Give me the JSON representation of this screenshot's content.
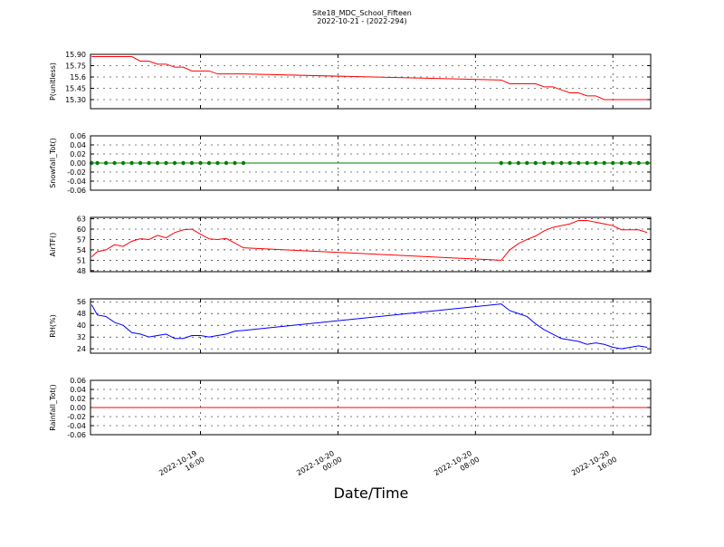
{
  "chart_data": {
    "type": "line",
    "title": "Site18_MDC_School_Fifteen",
    "subtitle": "2022-10-21 - (2022-294)",
    "xlabel": "Date/Time",
    "grid": true,
    "x": [
      "2022-10-19 09:40",
      "2022-10-19 10:00",
      "2022-10-19 10:30",
      "2022-10-19 11:00",
      "2022-10-19 11:30",
      "2022-10-19 12:00",
      "2022-10-19 12:30",
      "2022-10-19 13:00",
      "2022-10-19 13:30",
      "2022-10-19 14:00",
      "2022-10-19 14:30",
      "2022-10-19 15:00",
      "2022-10-19 15:30",
      "2022-10-19 16:00",
      "2022-10-19 16:30",
      "2022-10-19 17:00",
      "2022-10-19 17:30",
      "2022-10-19 18:00",
      "2022-10-19 18:30",
      "2022-10-20 09:30",
      "2022-10-20 10:00",
      "2022-10-20 10:30",
      "2022-10-20 11:00",
      "2022-10-20 11:30",
      "2022-10-20 12:00",
      "2022-10-20 12:30",
      "2022-10-20 13:00",
      "2022-10-20 13:30",
      "2022-10-20 14:00",
      "2022-10-20 14:30",
      "2022-10-20 15:00",
      "2022-10-20 15:30",
      "2022-10-20 16:00",
      "2022-10-20 16:30",
      "2022-10-20 17:00",
      "2022-10-20 17:30",
      "2022-10-20 18:00"
    ],
    "xlim": [
      "2022-10-19 09:36",
      "2022-10-20 18:12"
    ],
    "xticks": [
      {
        "value": "2022-10-19 16:00",
        "label": [
          "2022-10-19",
          "16:00"
        ]
      },
      {
        "value": "2022-10-20 00:00",
        "label": [
          "2022-10-20",
          "00:00"
        ]
      },
      {
        "value": "2022-10-20 08:00",
        "label": [
          "2022-10-20",
          "08:00"
        ]
      },
      {
        "value": "2022-10-20 16:00",
        "label": [
          "2022-10-20",
          "16:00"
        ]
      }
    ],
    "panels": [
      {
        "ylabel": "P(unitless)",
        "ylim": [
          15.18,
          15.9
        ],
        "yticks": [
          {
            "value": 15.3,
            "label": "15.30"
          },
          15.45,
          15.6,
          15.75,
          {
            "value": 15.9,
            "label": "15.90"
          }
        ],
        "series": [
          {
            "color": "#ff0000",
            "marker": false,
            "values": [
              15.87,
              15.87,
              15.87,
              15.87,
              15.87,
              15.87,
              15.81,
              15.81,
              15.77,
              15.77,
              15.73,
              15.73,
              15.68,
              15.68,
              15.68,
              15.64,
              15.64,
              15.64,
              15.64,
              15.56,
              15.51,
              15.51,
              15.51,
              15.51,
              15.47,
              15.47,
              15.43,
              15.39,
              15.39,
              15.35,
              15.35,
              15.3,
              15.3,
              15.3,
              15.3,
              15.3,
              15.3
            ]
          }
        ]
      },
      {
        "ylabel": "Snowfall_Tot()",
        "ylim": [
          -0.06,
          0.06
        ],
        "yticks": [
          -0.06,
          -0.04,
          -0.02,
          {
            "value": 0,
            "label": "0.00"
          },
          0.02,
          0.04,
          0.06
        ],
        "series": [
          {
            "color": "#008000",
            "marker": true,
            "values": [
              0,
              0,
              0,
              0,
              0,
              0,
              0,
              0,
              0,
              0,
              0,
              0,
              0,
              0,
              0,
              0,
              0,
              0,
              0,
              0,
              0,
              0,
              0,
              0,
              0,
              0,
              0,
              0,
              0,
              0,
              0,
              0,
              0,
              0,
              0,
              0,
              0
            ]
          }
        ]
      },
      {
        "ylabel": "AirTF()",
        "ylim": [
          47.7,
          63.4
        ],
        "yticks": [
          48,
          51,
          54,
          57,
          60,
          63
        ],
        "series": [
          {
            "color": "#ff0000",
            "marker": false,
            "values": [
              52,
              53.5,
              54,
              55.5,
              55,
              56.5,
              57.2,
              57,
              58.2,
              57.5,
              59,
              59.8,
              60,
              58.5,
              57.2,
              57,
              57.3,
              56,
              54.6,
              51,
              54,
              55.8,
              57,
              58,
              59.5,
              60.5,
              61,
              61.5,
              62.5,
              62.5,
              62,
              61.5,
              61,
              59.8,
              59.8,
              59.8,
              59
            ]
          }
        ]
      },
      {
        "ylabel": "RH(%)",
        "ylim": [
          21,
          58
        ],
        "yticks": [
          24,
          32,
          40,
          48,
          56
        ],
        "series": [
          {
            "color": "#0000ff",
            "marker": false,
            "values": [
              54,
              47,
              46,
              42,
              40,
              35,
              34,
              32,
              33,
              34,
              31,
              31,
              33,
              33,
              32,
              33,
              34,
              36,
              36.5,
              54.5,
              50,
              48,
              46,
              41,
              37,
              34,
              31,
              30,
              29,
              27,
              28,
              27,
              25,
              24,
              25,
              26,
              25
            ]
          }
        ]
      },
      {
        "ylabel": "Rainfall_Tot()",
        "ylim": [
          -0.06,
          0.06
        ],
        "yticks": [
          -0.06,
          -0.04,
          -0.02,
          {
            "value": 0,
            "label": "0.00"
          },
          0.02,
          0.04,
          0.06
        ],
        "series": [
          {
            "color": "#ff0000",
            "marker": false,
            "values": [
              0,
              0,
              0,
              0,
              0,
              0,
              0,
              0,
              0,
              0,
              0,
              0,
              0,
              0,
              0,
              0,
              0,
              0,
              0,
              0,
              0,
              0,
              0,
              0,
              0,
              0,
              0,
              0,
              0,
              0,
              0,
              0,
              0,
              0,
              0,
              0,
              0
            ]
          }
        ]
      }
    ]
  }
}
